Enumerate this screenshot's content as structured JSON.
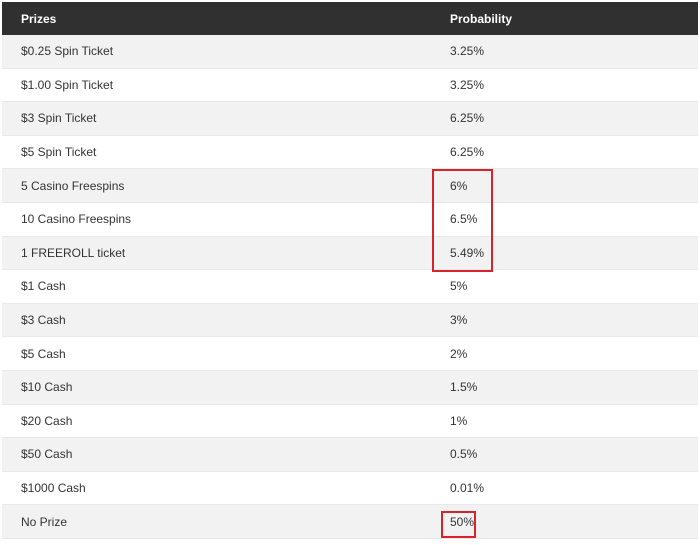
{
  "table": {
    "headers": {
      "prize": "Prizes",
      "probability": "Probability"
    },
    "rows": [
      {
        "prize": "$0.25 Spin Ticket",
        "probability": "3.25%"
      },
      {
        "prize": "$1.00 Spin Ticket",
        "probability": "3.25%"
      },
      {
        "prize": "$3 Spin Ticket",
        "probability": "6.25%"
      },
      {
        "prize": "$5 Spin Ticket",
        "probability": "6.25%"
      },
      {
        "prize": "5 Casino Freespins",
        "probability": "6%"
      },
      {
        "prize": "10 Casino Freespins",
        "probability": "6.5%"
      },
      {
        "prize": "1 FREEROLL ticket",
        "probability": "5.49%"
      },
      {
        "prize": "$1 Cash",
        "probability": "5%"
      },
      {
        "prize": "$3 Cash",
        "probability": "3%"
      },
      {
        "prize": "$5 Cash",
        "probability": "2%"
      },
      {
        "prize": "$10 Cash",
        "probability": "1.5%"
      },
      {
        "prize": "$20 Cash",
        "probability": "1%"
      },
      {
        "prize": "$50 Cash",
        "probability": "0.5%"
      },
      {
        "prize": "$1000 Cash",
        "probability": "0.01%"
      },
      {
        "prize": "No Prize",
        "probability": "50%"
      }
    ]
  },
  "highlights": {
    "color": "#d8232a",
    "rows_group": [
      "5 Casino Freespins",
      "10 Casino Freespins",
      "1 FREEROLL ticket"
    ],
    "single": "No Prize"
  },
  "colors": {
    "header_bg": "#303030",
    "header_text": "#ffffff",
    "row_alt_bg": "#f2f2f2",
    "row_bg": "#ffffff",
    "text": "#333333"
  }
}
